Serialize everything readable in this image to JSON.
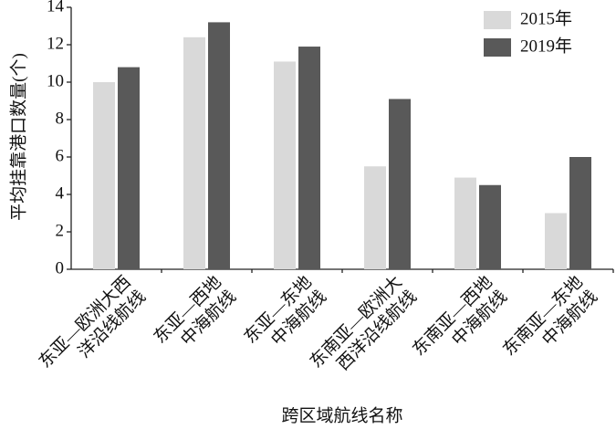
{
  "chart_data": {
    "type": "bar",
    "x_label": "跨区域航线名称",
    "y_label": "平均挂靠港口数量(个)",
    "categories": [
      "东亚—欧洲大西\n洋沿线航线",
      "东亚—西地\n中海航线",
      "东亚—东地\n中海航线",
      "东南亚—欧洲大\n西洋沿线航线",
      "东南亚—西地\n中海航线",
      "东南亚—东地\n中海航线"
    ],
    "series": [
      {
        "name": "2015年",
        "color": "#d9d9d9",
        "values": [
          10.0,
          12.4,
          11.1,
          5.5,
          4.9,
          3.0
        ]
      },
      {
        "name": "2019年",
        "color": "#595959",
        "values": [
          10.8,
          13.2,
          11.9,
          9.1,
          4.5,
          6.0
        ]
      }
    ],
    "ylim": [
      0,
      14
    ],
    "yticks": [
      0,
      2,
      4,
      6,
      8,
      10,
      12,
      14
    ],
    "legend": "top-right",
    "grid": false
  }
}
